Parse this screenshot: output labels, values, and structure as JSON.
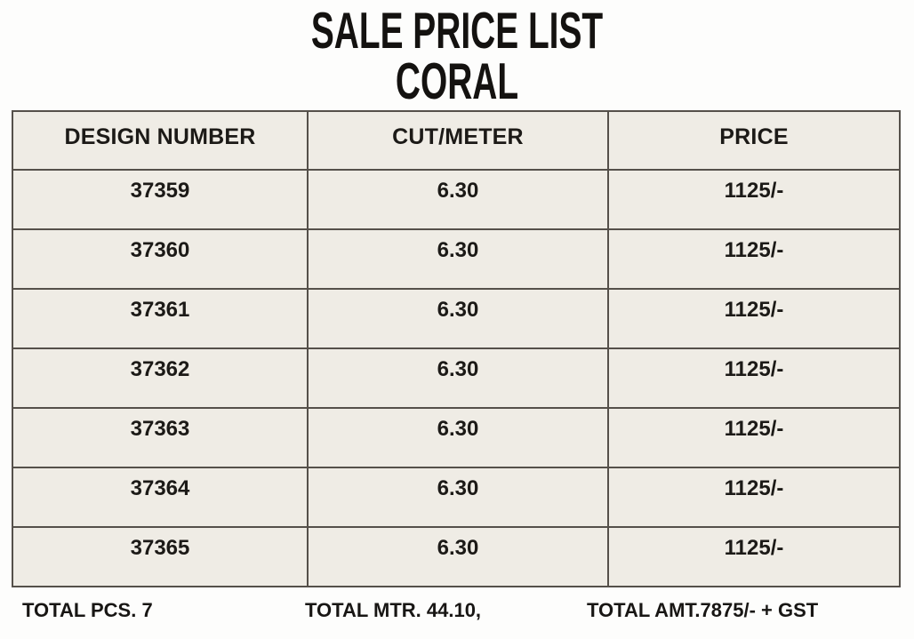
{
  "title": "SALE PRICE LIST",
  "subtitle": "CORAL",
  "table": {
    "columns": [
      "DESIGN NUMBER",
      "CUT/METER",
      "PRICE"
    ],
    "rows": [
      {
        "design": "37359",
        "cut": "6.30",
        "price": "1125/-"
      },
      {
        "design": "37360",
        "cut": "6.30",
        "price": "1125/-"
      },
      {
        "design": "37361",
        "cut": "6.30",
        "price": "1125/-"
      },
      {
        "design": "37362",
        "cut": "6.30",
        "price": "1125/-"
      },
      {
        "design": "37363",
        "cut": "6.30",
        "price": "1125/-"
      },
      {
        "design": "37364",
        "cut": "6.30",
        "price": "1125/-"
      },
      {
        "design": "37365",
        "cut": "6.30",
        "price": "1125/-"
      }
    ]
  },
  "totals": {
    "pieces": "TOTAL PCS. 7",
    "meters": "TOTAL MTR. 44.10,",
    "amount": "TOTAL AMT.7875/- + GST"
  },
  "colors": {
    "cell_background": "#efece5",
    "border": "#55504a",
    "text": "#1c1a17",
    "page_background": "#fdfdfc"
  }
}
